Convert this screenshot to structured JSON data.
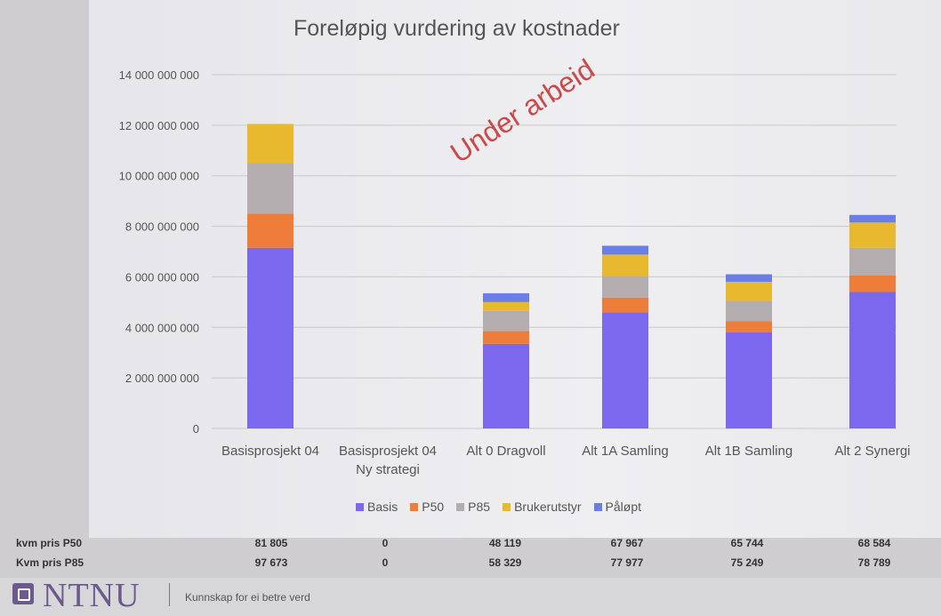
{
  "chart_data": {
    "type": "bar",
    "stacked": true,
    "title": "Foreløpig vurdering av kostnader",
    "categories": [
      "Basisprosjekt 04",
      "Basisprosjekt 04\nNy strategi",
      "Alt 0  Dragvoll",
      "Alt 1A Samling",
      "Alt 1B Samling",
      "Alt 2 Synergi"
    ],
    "series": [
      {
        "name": "Basis",
        "color": "#7b68ee",
        "values": [
          7150000000,
          0,
          3350000000,
          4600000000,
          3800000000,
          5400000000
        ]
      },
      {
        "name": "P50",
        "color": "#ef7d3a",
        "values": [
          1350000000,
          0,
          500000000,
          580000000,
          450000000,
          650000000
        ]
      },
      {
        "name": "P85",
        "color": "#b3adaf",
        "values": [
          2000000000,
          0,
          800000000,
          850000000,
          800000000,
          1100000000
        ]
      },
      {
        "name": "Brukerutstyr",
        "color": "#e8b92f",
        "values": [
          1550000000,
          0,
          350000000,
          850000000,
          750000000,
          1000000000
        ]
      },
      {
        "name": "Påløpt",
        "color": "#6a7ee8",
        "values": [
          0,
          0,
          350000000,
          350000000,
          300000000,
          300000000
        ]
      }
    ],
    "ylim": [
      0,
      14000000000
    ],
    "yticks": [
      "0",
      "2 000 000 000",
      "4 000 000 000",
      "6 000 000 000",
      "8 000 000 000",
      "10 000 000 000",
      "12 000 000 000",
      "14 000 000 000"
    ],
    "grid": true,
    "legend": "bottom",
    "annotation": "Under arbeid"
  },
  "table": {
    "rows": [
      {
        "label": "kvm pris P50",
        "values": [
          "81 805",
          "0",
          "48 119",
          "67 967",
          "65 744",
          "68 584"
        ]
      },
      {
        "label": "Kvm pris P85",
        "values": [
          "97 673",
          "0",
          "58 329",
          "77 977",
          "75 249",
          "78 789"
        ]
      }
    ]
  },
  "footer": {
    "logo": "NTNU",
    "tagline": "Kunnskap for ei betre verd"
  }
}
